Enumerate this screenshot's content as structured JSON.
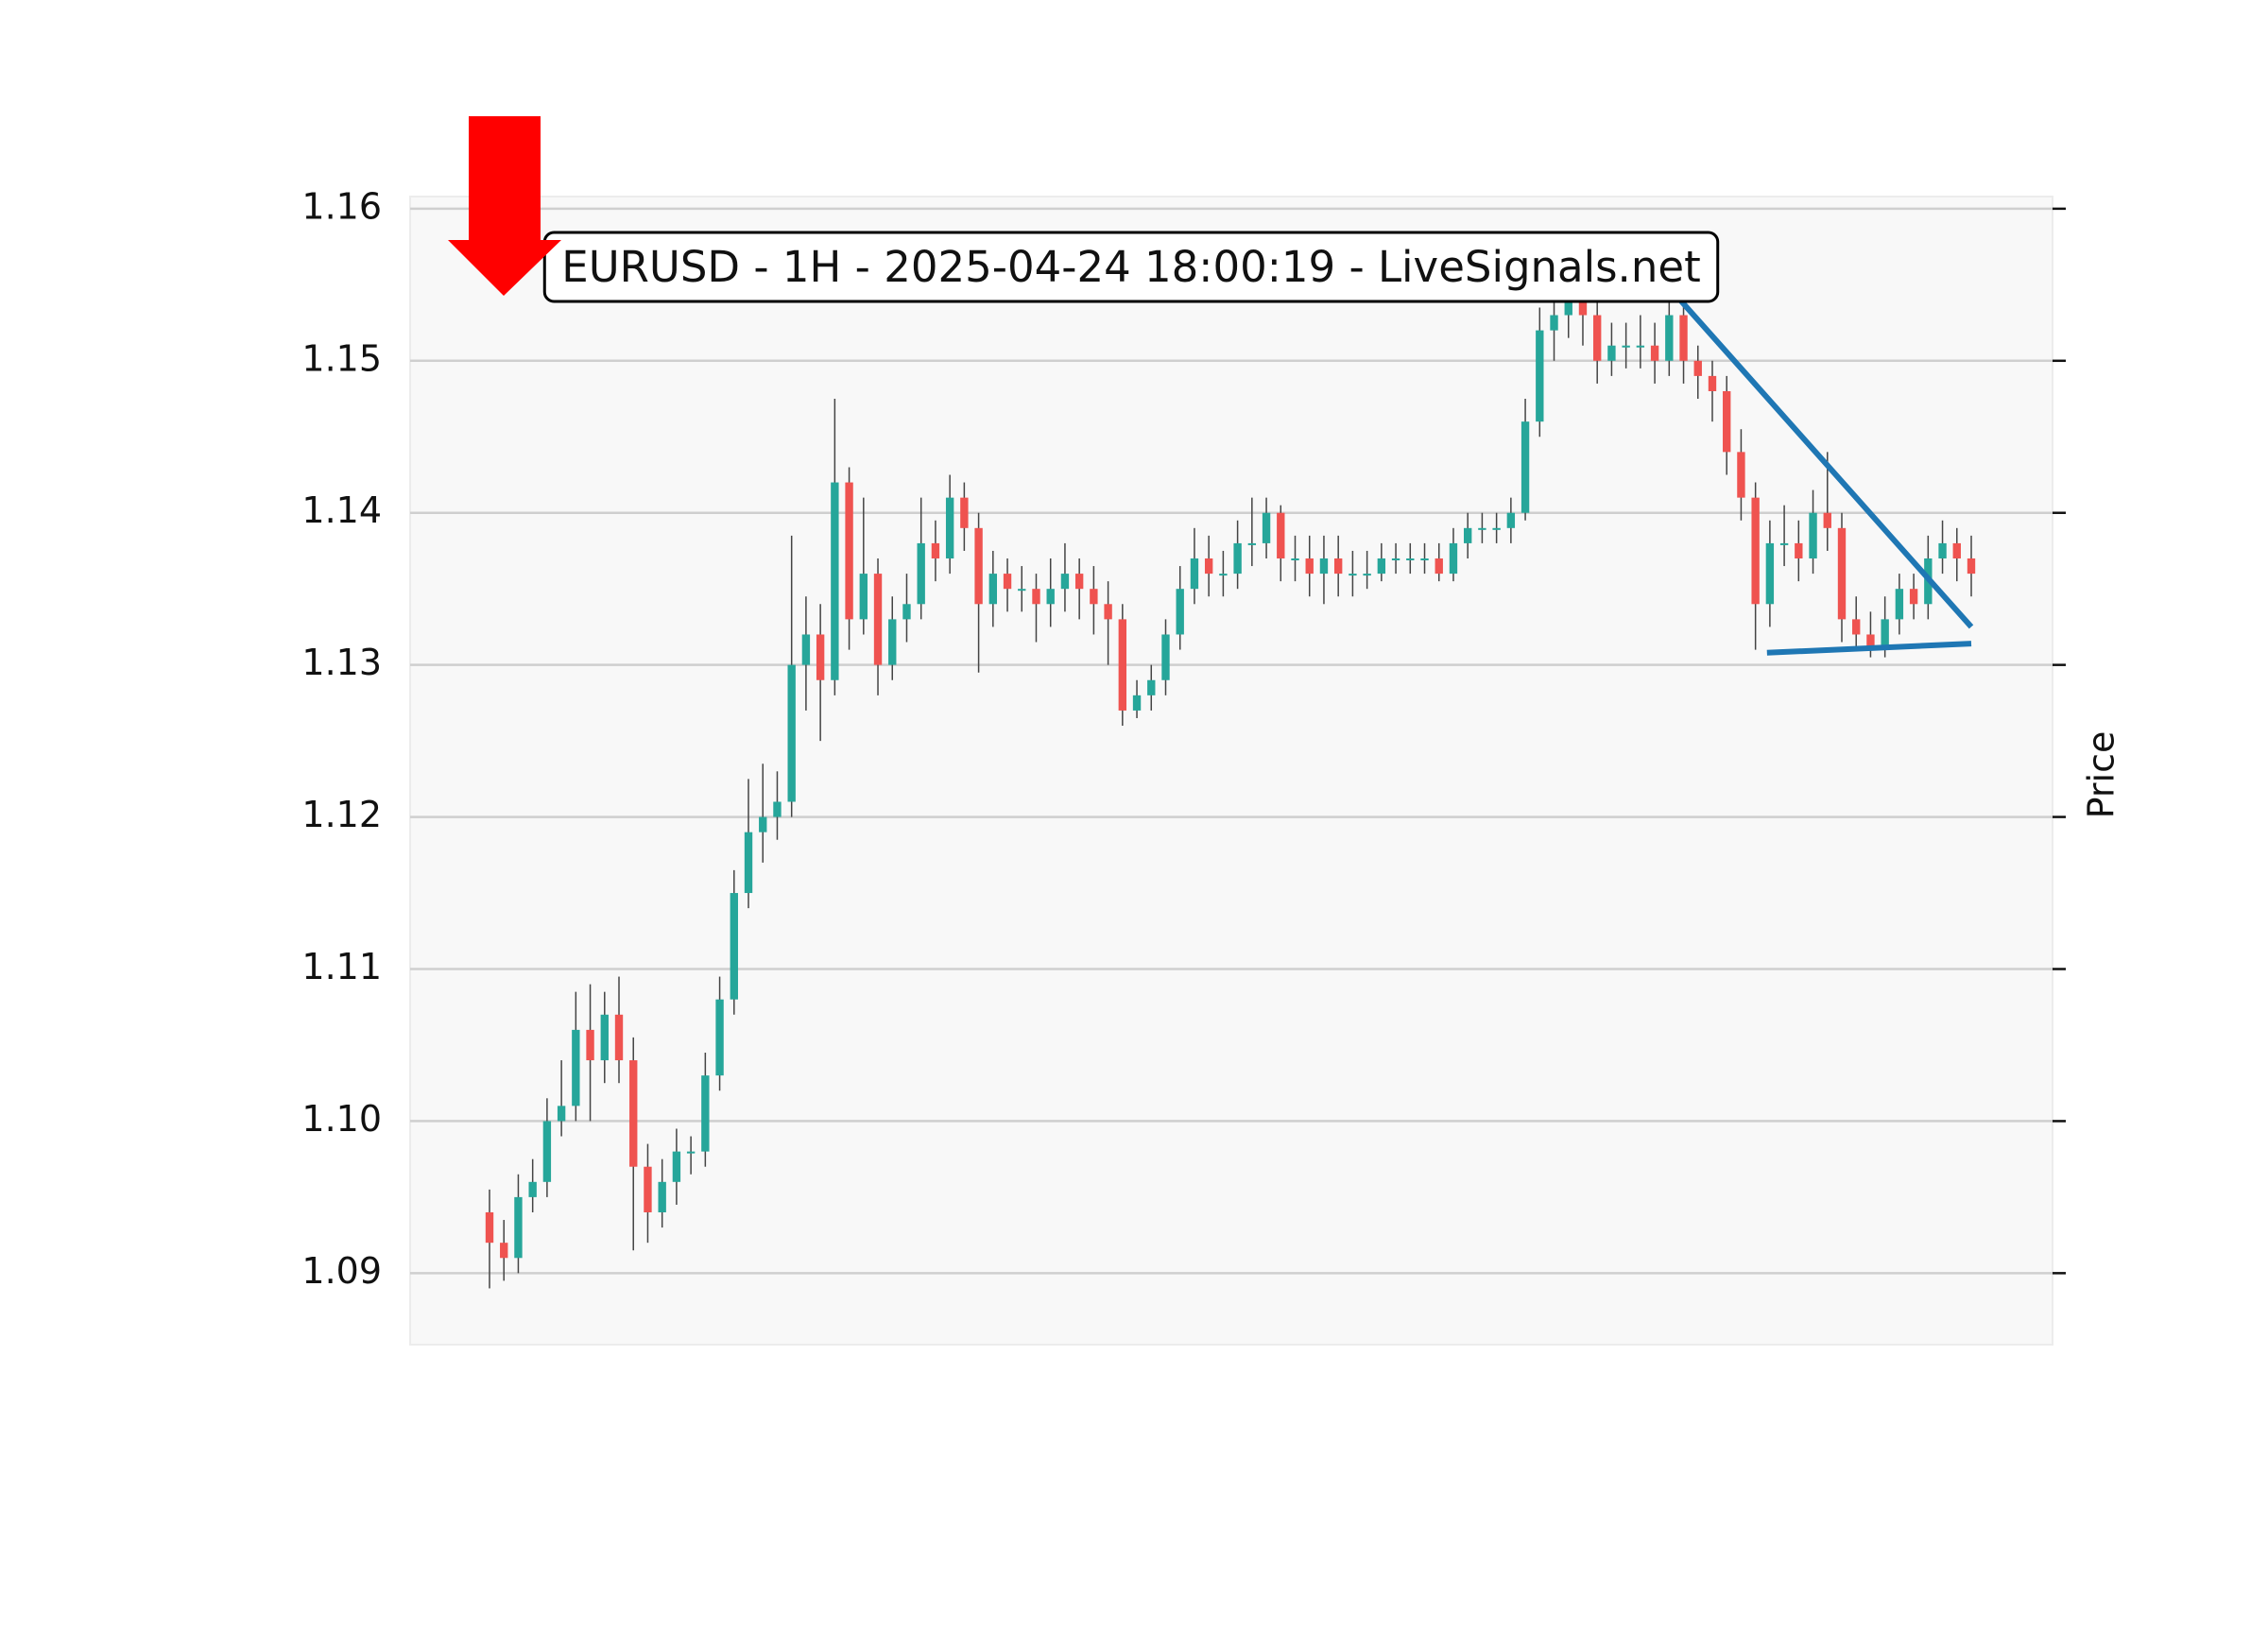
{
  "chart_data": {
    "type": "candlestick",
    "title": "EURUSD - 1H - 2025-04-24 18:00:19 - LiveSignals.net",
    "ylabel": "Price",
    "ylim": [
      1.0853,
      1.1608
    ],
    "yticks": [
      1.09,
      {
        "value": 1.1,
        "label": "1.10"
      },
      1.11,
      1.12,
      1.13,
      1.14,
      1.15,
      1.16
    ],
    "grid": true,
    "up_color": "#26a69a",
    "down_color": "#ef5350",
    "open": [
      1.094,
      1.092,
      1.091,
      1.095,
      1.096,
      1.1,
      1.101,
      1.106,
      1.104,
      1.107,
      1.104,
      1.097,
      1.094,
      1.096,
      1.098,
      1.098,
      1.103,
      1.108,
      1.115,
      1.119,
      1.12,
      1.121,
      1.13,
      1.132,
      1.129,
      1.142,
      1.133,
      1.136,
      1.13,
      1.133,
      1.134,
      1.138,
      1.137,
      1.141,
      1.139,
      1.134,
      1.136,
      1.135,
      1.135,
      1.134,
      1.135,
      1.136,
      1.135,
      1.134,
      1.133,
      1.127,
      1.128,
      1.129,
      1.132,
      1.135,
      1.137,
      1.136,
      1.136,
      1.138,
      1.138,
      1.14,
      1.137,
      1.137,
      1.136,
      1.137,
      1.136,
      1.136,
      1.136,
      1.137,
      1.137,
      1.137,
      1.137,
      1.136,
      1.138,
      1.139,
      1.139,
      1.139,
      1.14,
      1.146,
      1.152,
      1.153,
      1.155,
      1.153,
      1.15,
      1.151,
      1.151,
      1.151,
      1.15,
      1.153,
      1.15,
      1.149,
      1.148,
      1.144,
      1.141,
      1.134,
      1.138,
      1.138,
      1.137,
      1.14,
      1.139,
      1.133,
      1.132,
      1.131,
      1.133,
      1.135,
      1.134,
      1.137,
      1.138,
      1.137
    ],
    "high": [
      1.0955,
      1.0935,
      1.0965,
      1.0975,
      1.1015,
      1.104,
      1.1085,
      1.109,
      1.1085,
      1.1095,
      1.1055,
      1.0985,
      1.0975,
      1.0995,
      1.099,
      1.1045,
      1.1095,
      1.1165,
      1.1225,
      1.1235,
      1.123,
      1.1385,
      1.1345,
      1.134,
      1.1475,
      1.143,
      1.141,
      1.137,
      1.1345,
      1.136,
      1.141,
      1.1395,
      1.1425,
      1.142,
      1.14,
      1.1375,
      1.137,
      1.1365,
      1.136,
      1.137,
      1.138,
      1.137,
      1.1365,
      1.1355,
      1.134,
      1.129,
      1.13,
      1.133,
      1.1365,
      1.139,
      1.1385,
      1.1375,
      1.1395,
      1.141,
      1.141,
      1.1405,
      1.1385,
      1.1385,
      1.1385,
      1.1385,
      1.1375,
      1.1375,
      1.138,
      1.138,
      1.138,
      1.138,
      1.138,
      1.139,
      1.14,
      1.14,
      1.14,
      1.141,
      1.1475,
      1.1535,
      1.155,
      1.157,
      1.156,
      1.154,
      1.1525,
      1.1525,
      1.153,
      1.1525,
      1.1545,
      1.154,
      1.151,
      1.15,
      1.149,
      1.1455,
      1.142,
      1.1395,
      1.1405,
      1.1395,
      1.1415,
      1.144,
      1.14,
      1.1345,
      1.1335,
      1.1345,
      1.136,
      1.136,
      1.1385,
      1.1395,
      1.139,
      1.1385
    ],
    "low": [
      1.089,
      1.0895,
      1.09,
      1.094,
      1.095,
      1.099,
      1.1,
      1.1,
      1.1025,
      1.1025,
      1.0915,
      1.092,
      1.093,
      1.0945,
      1.0965,
      1.097,
      1.102,
      1.107,
      1.114,
      1.117,
      1.1185,
      1.12,
      1.127,
      1.125,
      1.128,
      1.131,
      1.132,
      1.128,
      1.129,
      1.1315,
      1.133,
      1.1355,
      1.136,
      1.1375,
      1.1295,
      1.1325,
      1.1335,
      1.1335,
      1.1315,
      1.1325,
      1.1335,
      1.133,
      1.132,
      1.13,
      1.126,
      1.1265,
      1.127,
      1.128,
      1.131,
      1.134,
      1.1345,
      1.1345,
      1.135,
      1.1365,
      1.137,
      1.1355,
      1.1355,
      1.1345,
      1.134,
      1.1345,
      1.1345,
      1.135,
      1.1355,
      1.136,
      1.136,
      1.136,
      1.1355,
      1.1355,
      1.137,
      1.138,
      1.138,
      1.138,
      1.1395,
      1.145,
      1.15,
      1.1515,
      1.151,
      1.1485,
      1.149,
      1.1495,
      1.1495,
      1.1485,
      1.149,
      1.1485,
      1.1475,
      1.146,
      1.1425,
      1.1395,
      1.131,
      1.1325,
      1.1365,
      1.1355,
      1.136,
      1.1375,
      1.1315,
      1.131,
      1.1305,
      1.1305,
      1.132,
      1.133,
      1.133,
      1.136,
      1.1355,
      1.1345
    ],
    "close": [
      1.092,
      1.091,
      1.095,
      1.096,
      1.1,
      1.101,
      1.106,
      1.104,
      1.107,
      1.104,
      1.097,
      1.094,
      1.096,
      1.098,
      1.098,
      1.103,
      1.108,
      1.115,
      1.119,
      1.12,
      1.121,
      1.13,
      1.132,
      1.129,
      1.142,
      1.133,
      1.136,
      1.13,
      1.133,
      1.134,
      1.138,
      1.137,
      1.141,
      1.139,
      1.134,
      1.136,
      1.135,
      1.135,
      1.134,
      1.135,
      1.136,
      1.135,
      1.134,
      1.133,
      1.127,
      1.128,
      1.129,
      1.132,
      1.135,
      1.137,
      1.136,
      1.136,
      1.138,
      1.138,
      1.14,
      1.137,
      1.137,
      1.136,
      1.137,
      1.136,
      1.136,
      1.136,
      1.137,
      1.137,
      1.137,
      1.137,
      1.136,
      1.138,
      1.139,
      1.139,
      1.139,
      1.14,
      1.146,
      1.152,
      1.153,
      1.155,
      1.153,
      1.15,
      1.151,
      1.151,
      1.151,
      1.15,
      1.153,
      1.15,
      1.149,
      1.148,
      1.144,
      1.141,
      1.134,
      1.138,
      1.138,
      1.137,
      1.14,
      1.139,
      1.133,
      1.132,
      1.131,
      1.133,
      1.135,
      1.134,
      1.137,
      1.138,
      1.137,
      1.136
    ],
    "trend_lines": [
      {
        "x": [
          82.2,
          103
        ],
        "y": [
          1.1546,
          1.1325
        ],
        "color": "#1f77b4"
      },
      {
        "x": [
          88.8,
          103
        ],
        "y": [
          1.1308,
          1.1314
        ],
        "color": "#1f77b4"
      }
    ]
  }
}
